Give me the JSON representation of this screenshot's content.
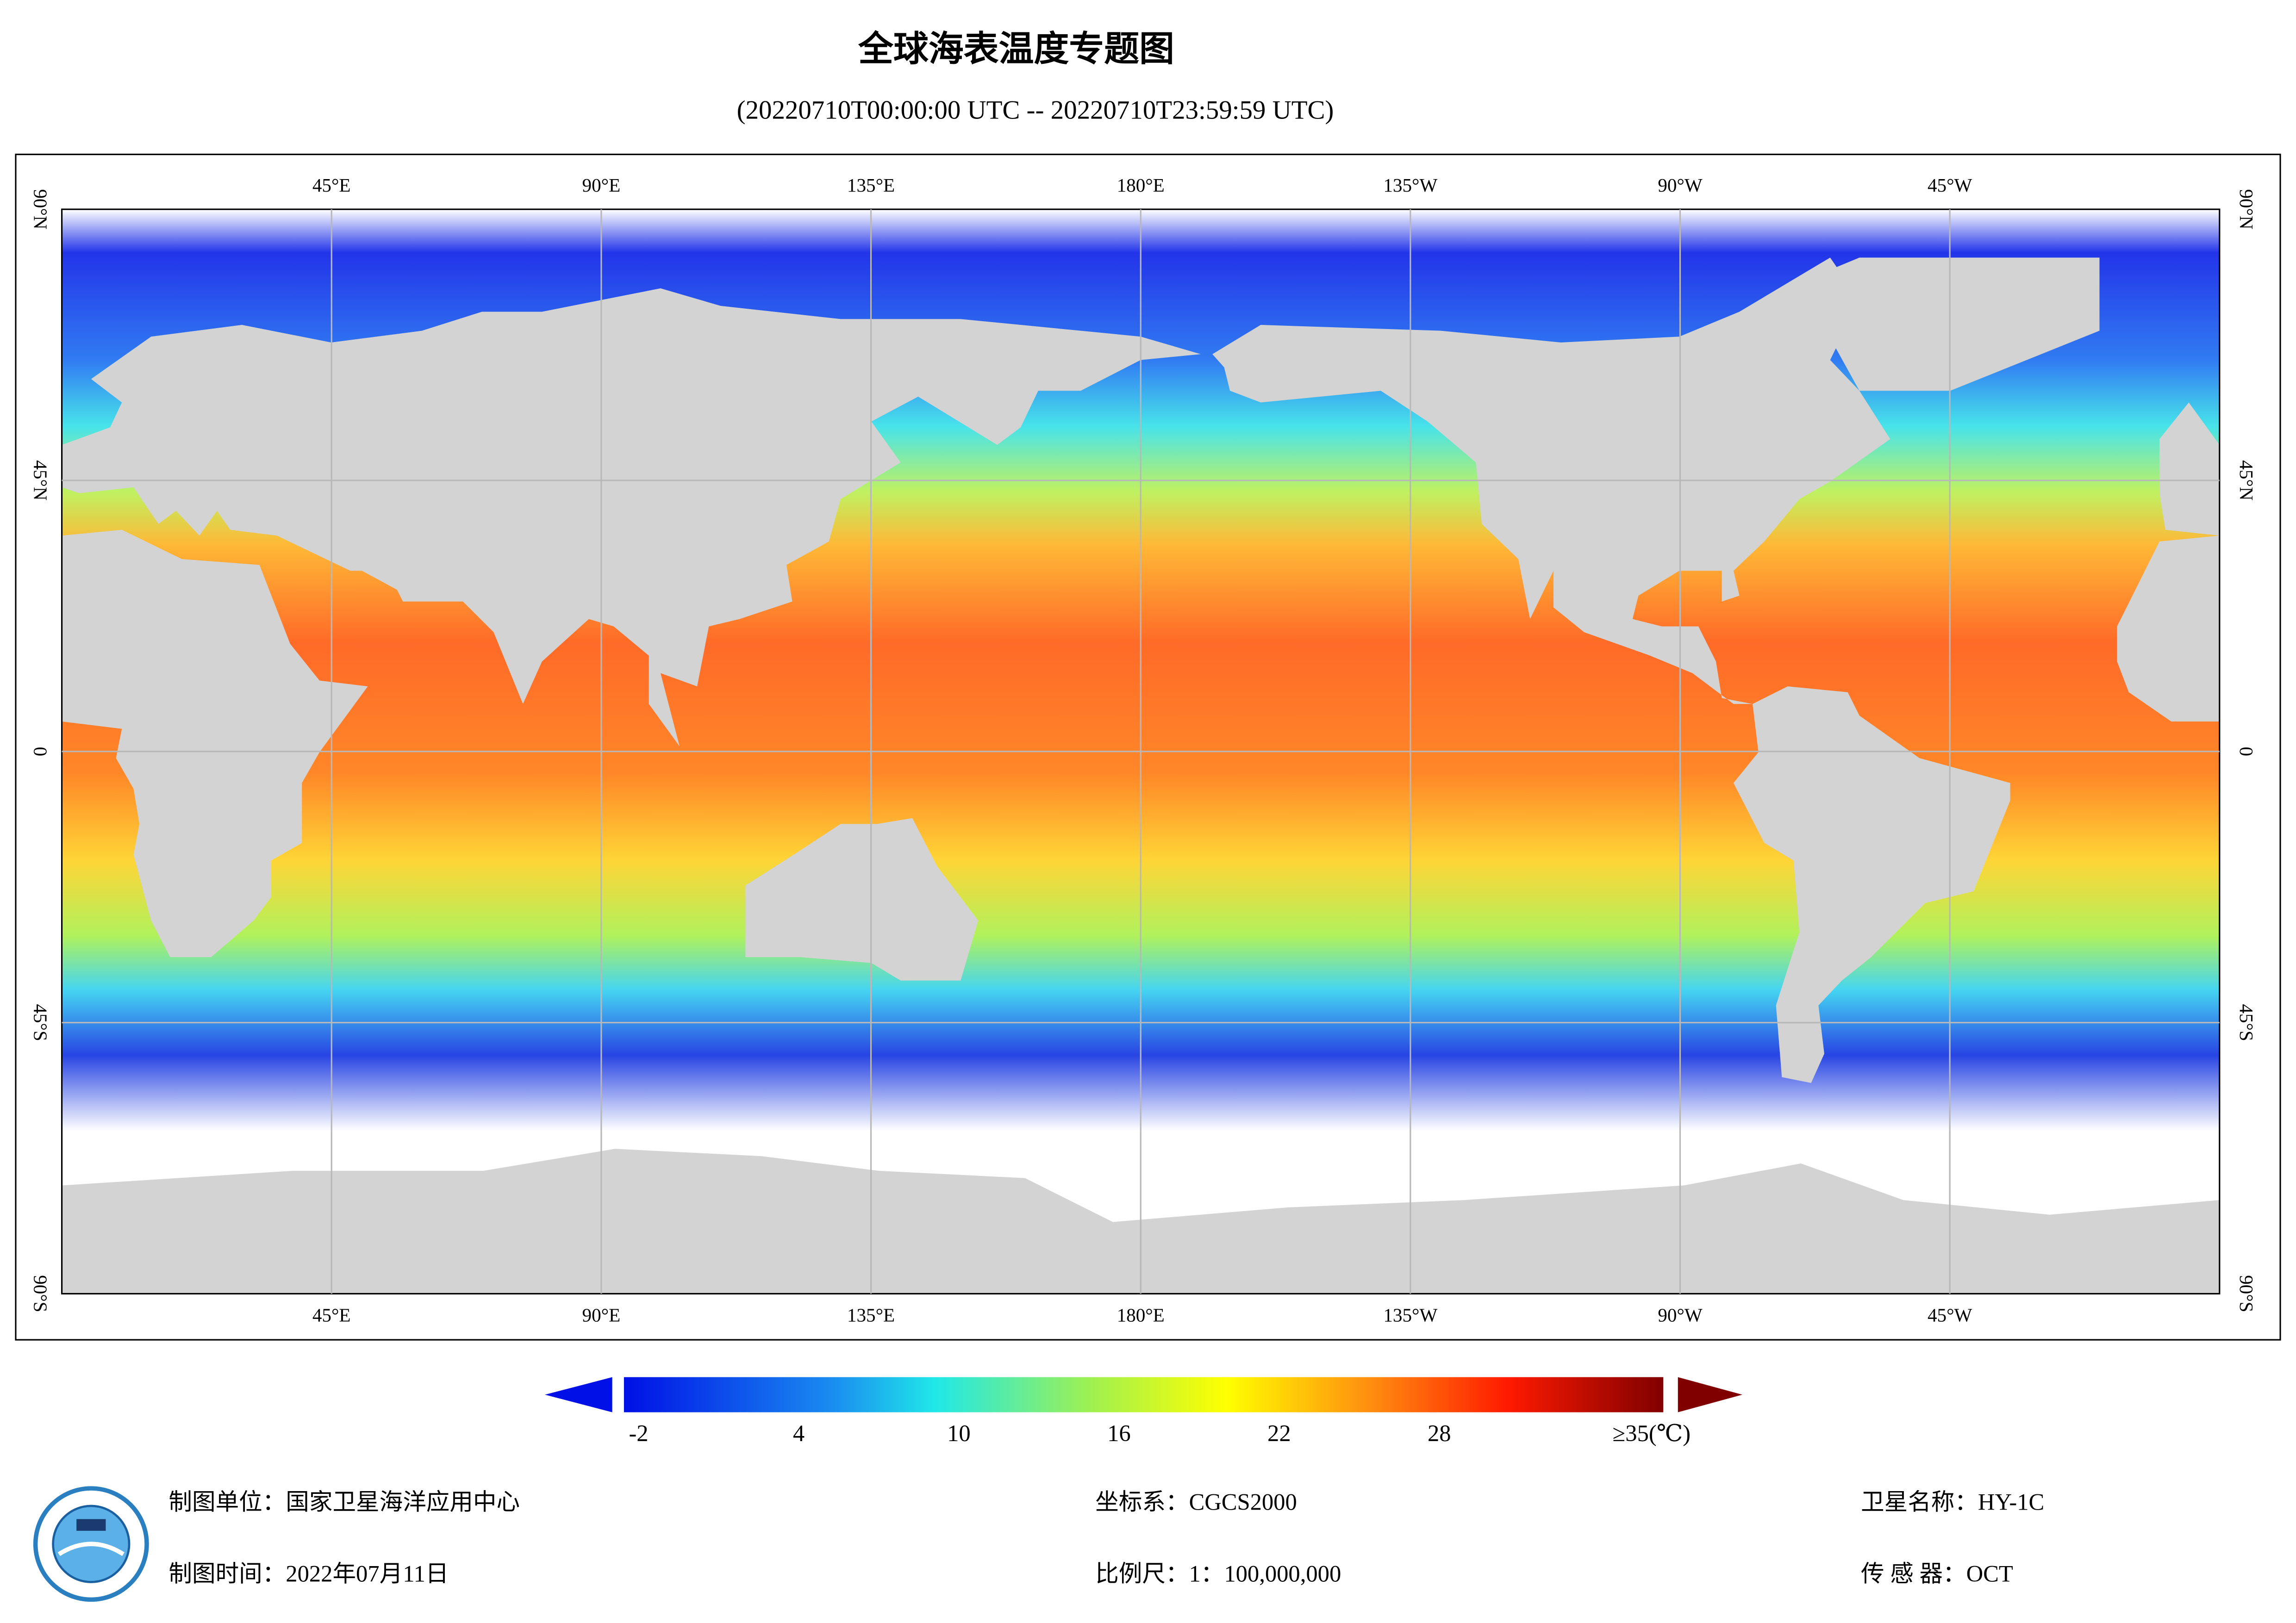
{
  "header": {
    "title": "全球海表温度专题图",
    "subtitle": "(20220710T00:00:00 UTC -- 20220710T23:59:59 UTC)"
  },
  "map": {
    "lon_labels": [
      "45°E",
      "90°E",
      "135°E",
      "180°E",
      "135°W",
      "90°W",
      "45°W"
    ],
    "lat_labels": [
      "90°N",
      "45°N",
      "0",
      "45°S",
      "90°S"
    ]
  },
  "colorbar": {
    "ticks": [
      -2,
      4,
      10,
      16,
      22,
      28
    ],
    "max_label": "≥35(℃)"
  },
  "footer": {
    "unit": "制图单位：国家卫星海洋应用中心",
    "time": "制图时间：2022年07月11日",
    "crs": "坐标系：CGCS2000",
    "scale": "比例尺：1：100,000,000",
    "satellite": "卫星名称：HY-1C",
    "sensor": "传 感 器：OCT"
  }
}
